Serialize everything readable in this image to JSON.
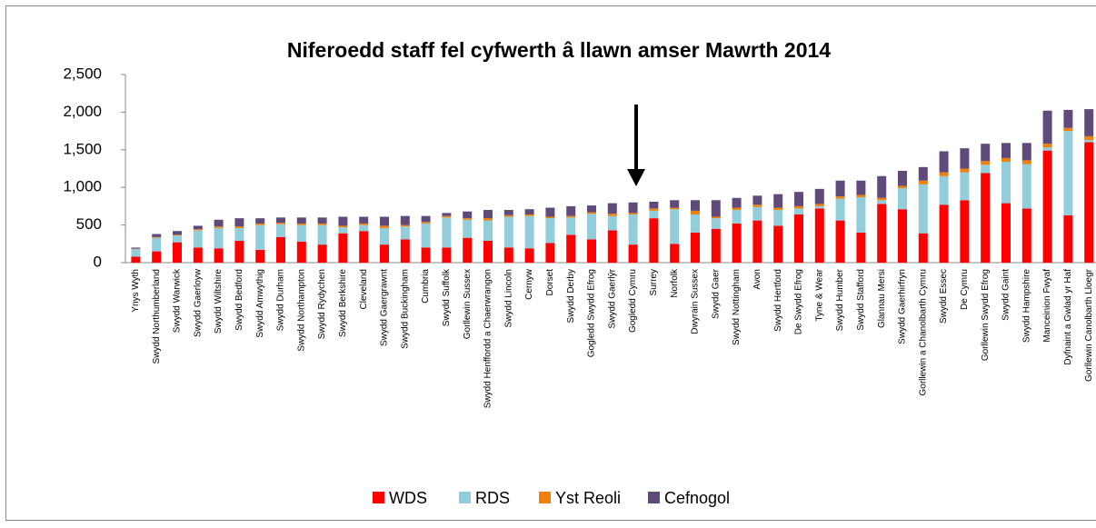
{
  "chart_data": {
    "type": "stacked_bar",
    "title": "Niferoedd staff fel cyfwerth â llawn amser Mawrth 2014",
    "categories": [
      "Ynys Wyth",
      "Swydd Northumberland",
      "Swydd Warwick",
      "Swydd Gaerloyw",
      "Swydd Wiltshire",
      "Swydd Bedford",
      "Swydd Amwythig",
      "Swydd Durham",
      "Swydd Northampton",
      "Swydd Rydychen",
      "Swydd Berkshire",
      "Cleveland",
      "Swydd Gaergrawnt",
      "Swydd Buckingham",
      "Cumbria",
      "Swydd Suffolk",
      "Gorllewin Sussex",
      "Swydd Henffordd a Chaerwrangon",
      "Swydd Lincoln",
      "Cernyw",
      "Dorset",
      "Swydd Derby",
      "Gogledd Swydd Efrog",
      "Swydd Gaerlŷr",
      "Gogledd Cymru",
      "Surrey",
      "Norfolk",
      "Dwyrain Sussex",
      "Swydd Gaer",
      "Swydd Nottingham",
      "Avon",
      "Swydd Hertford",
      "De Swydd Efrog",
      "Tyne & Wear",
      "Swydd Humber",
      "Swydd Stafford",
      "Glannau Mersi",
      "Swydd Gaerhirfryn",
      "Gorllewin a Chanolbarth Cymru",
      "Swydd Essec",
      "De Cymru",
      "Gorllewin Swydd Efrog",
      "Swydd Gaint",
      "Swydd Hampshire",
      "Manceinion Fwyaf",
      "Dyfnaint a Gwlad yr Haf",
      "Gorllewin Canolbarth Lloegr"
    ],
    "series": [
      {
        "name": "WDS",
        "color": "#ff0000",
        "values": [
          80,
          150,
          270,
          200,
          190,
          290,
          170,
          340,
          280,
          240,
          390,
          420,
          240,
          310,
          200,
          200,
          330,
          290,
          200,
          190,
          260,
          370,
          310,
          430,
          240,
          590,
          250,
          400,
          450,
          520,
          560,
          490,
          640,
          720,
          560,
          400,
          780,
          710,
          390,
          770,
          830,
          1190,
          790,
          720,
          1490,
          630,
          1600
        ]
      },
      {
        "name": "RDS",
        "color": "#92cddc",
        "values": [
          100,
          180,
          90,
          230,
          270,
          170,
          330,
          170,
          220,
          260,
          80,
          80,
          220,
          170,
          320,
          400,
          240,
          270,
          410,
          430,
          330,
          230,
          340,
          190,
          400,
          100,
          460,
          240,
          140,
          180,
          180,
          210,
          80,
          30,
          290,
          470,
          50,
          280,
          650,
          380,
          370,
          110,
          550,
          590,
          40,
          1120,
          30
        ]
      },
      {
        "name": "Yst Reoli",
        "color": "#f0800a",
        "values": [
          5,
          10,
          10,
          15,
          20,
          20,
          20,
          20,
          20,
          20,
          20,
          20,
          30,
          20,
          20,
          20,
          20,
          30,
          20,
          20,
          20,
          20,
          20,
          30,
          20,
          30,
          20,
          50,
          20,
          30,
          30,
          30,
          30,
          30,
          30,
          30,
          30,
          30,
          50,
          50,
          50,
          50,
          50,
          50,
          50,
          40,
          50
        ]
      },
      {
        "name": "Cefnogol",
        "color": "#604a7b",
        "values": [
          15,
          40,
          50,
          45,
          90,
          110,
          70,
          70,
          80,
          80,
          120,
          90,
          120,
          120,
          80,
          40,
          90,
          110,
          70,
          70,
          120,
          130,
          90,
          140,
          140,
          90,
          100,
          140,
          220,
          130,
          120,
          180,
          190,
          200,
          210,
          190,
          290,
          200,
          180,
          280,
          270,
          230,
          200,
          230,
          440,
          240,
          360
        ]
      }
    ],
    "ylim": [
      0,
      2500
    ],
    "yticks": [
      0,
      500,
      {
        "value": 1000,
        "label": "1,000"
      },
      {
        "value": 1500,
        "label": "1,500"
      },
      {
        "value": 2000,
        "label": "2,000"
      },
      {
        "value": 2500,
        "label": "2,500"
      }
    ]
  }
}
